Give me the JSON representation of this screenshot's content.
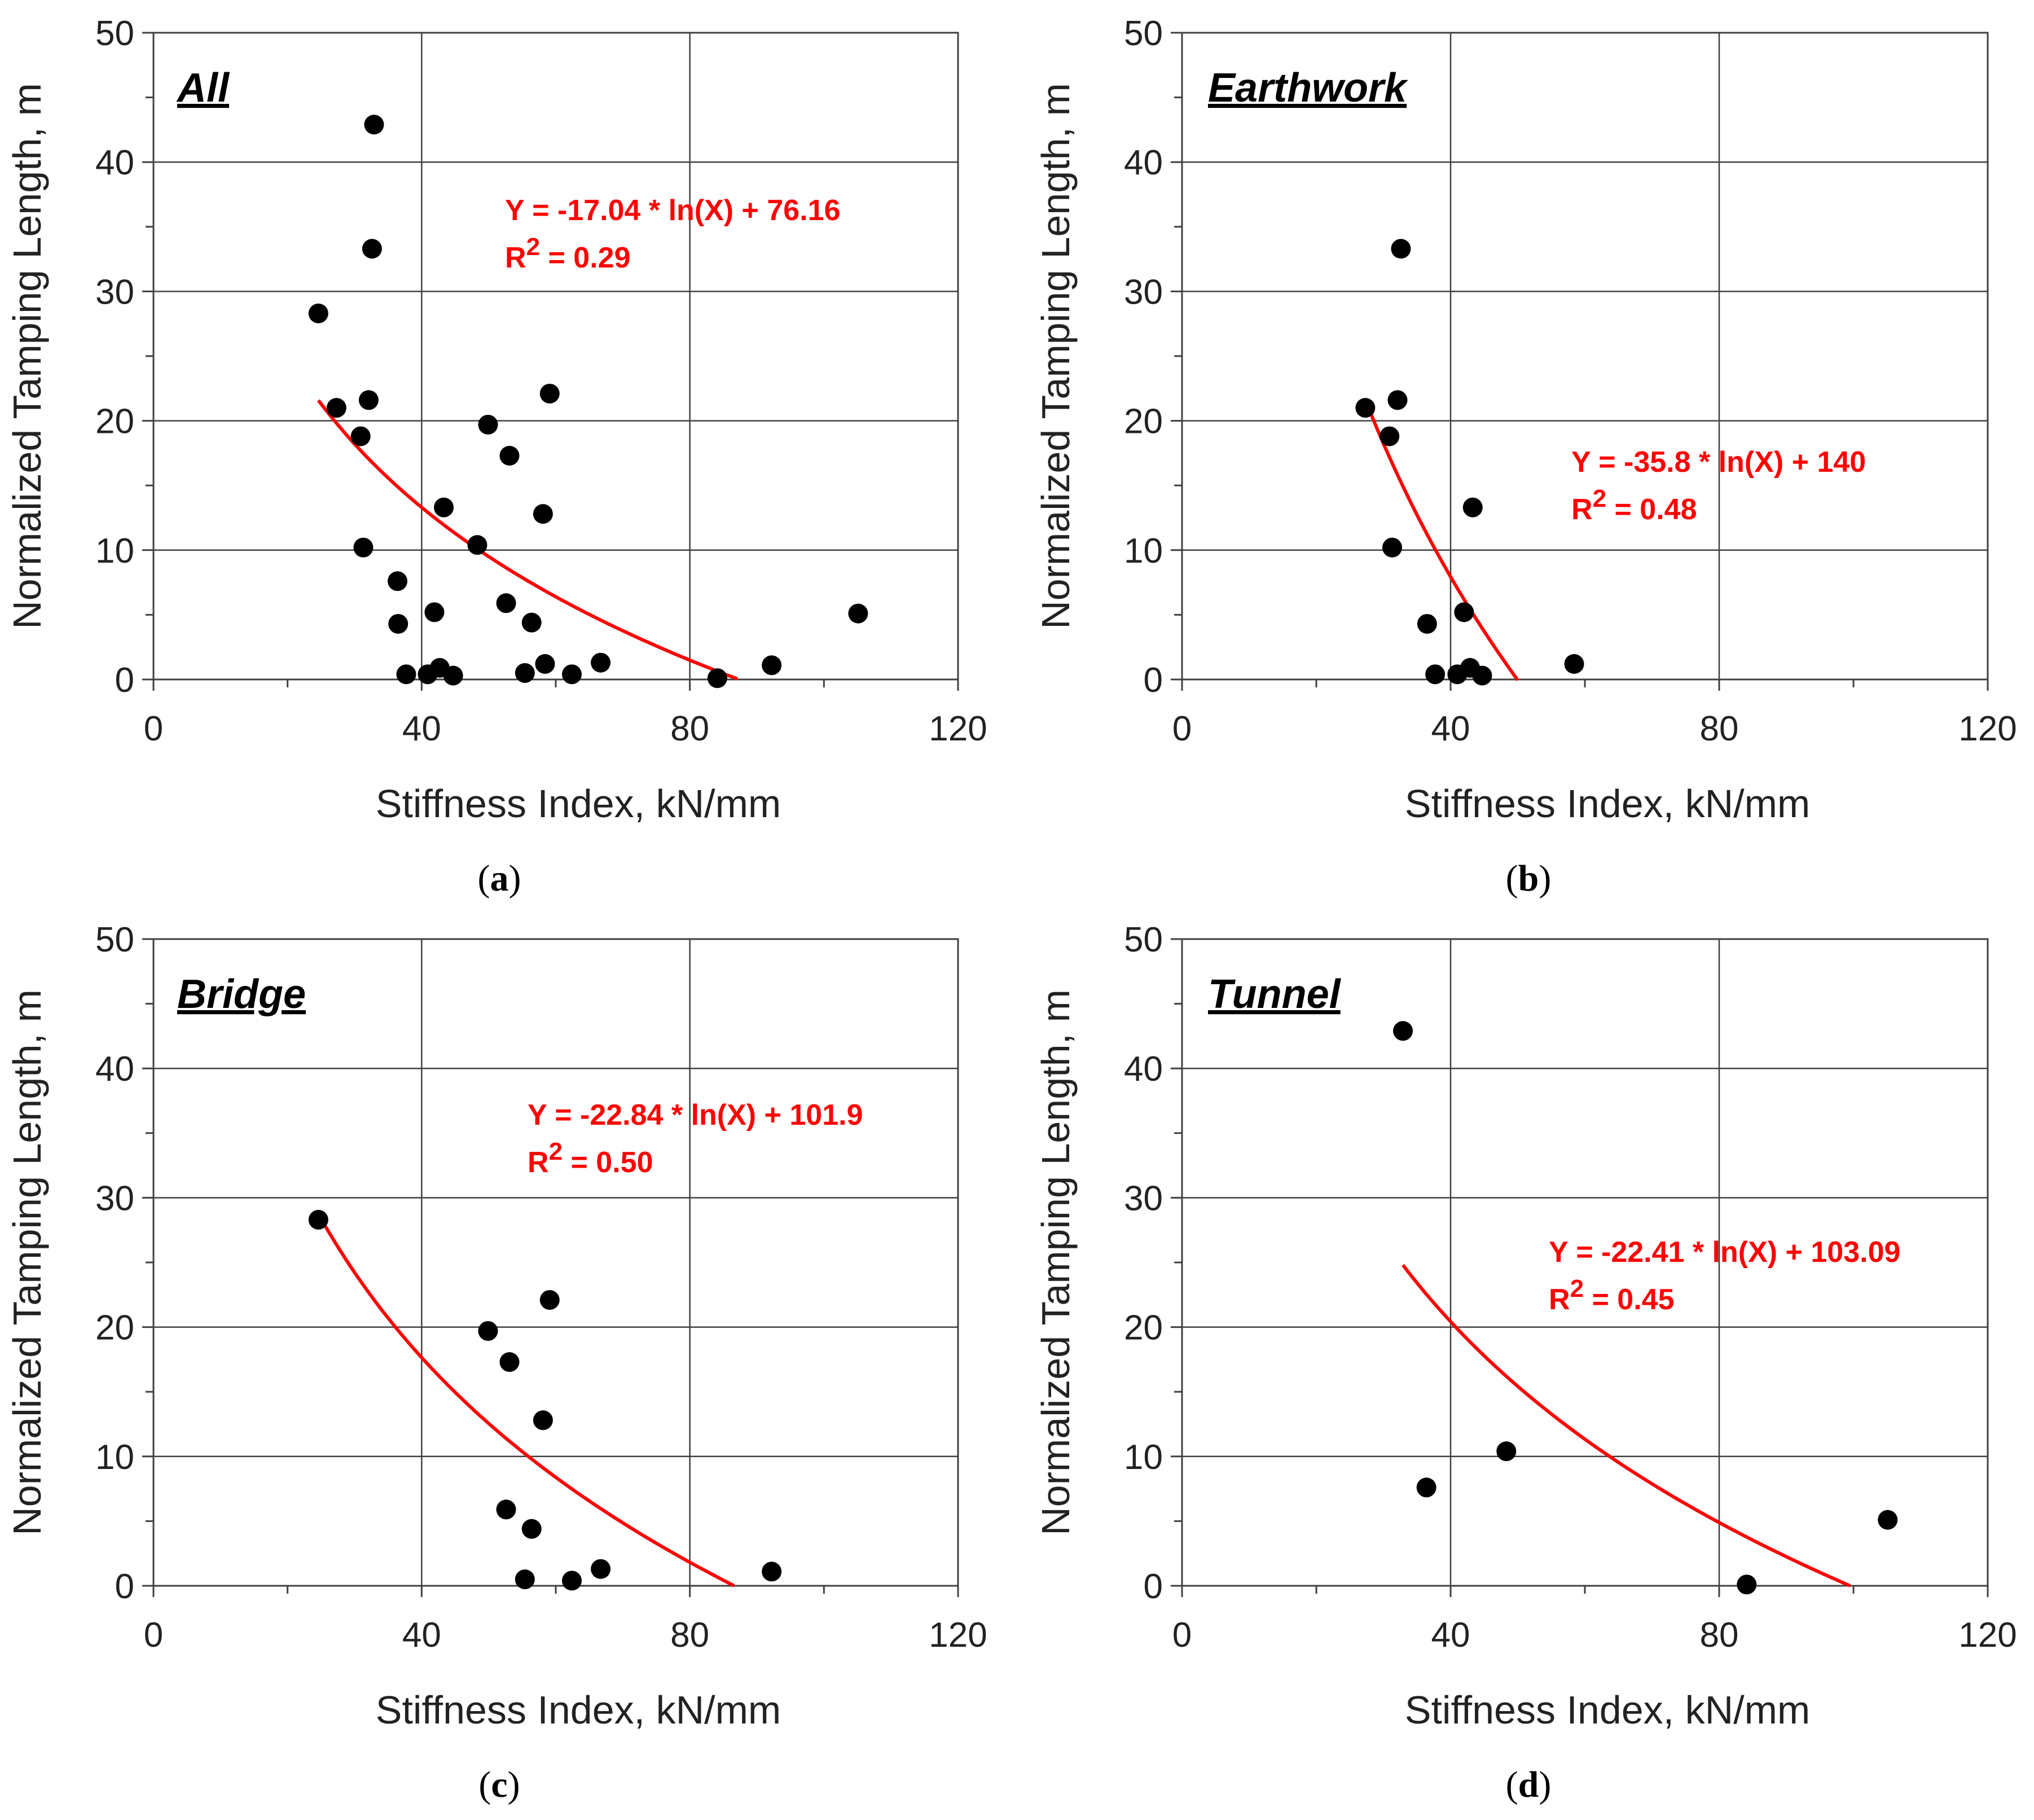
{
  "figure": {
    "colors": {
      "fit": "#ff0000",
      "marker": "#000000",
      "grid": "#404040",
      "axis": "#404040",
      "equation": "#ff0000"
    }
  },
  "chart_data": [
    {
      "type": "scatter",
      "id": "a",
      "title": "All",
      "caption_letter": "a",
      "xlabel": "Stiffness Index, kN/mm",
      "ylabel": "Normalized Tamping Length, m",
      "xlim": [
        0,
        120
      ],
      "ylim": [
        0,
        50
      ],
      "x_ticks": [
        0,
        40,
        80,
        120
      ],
      "y_ticks": [
        0,
        10,
        20,
        30,
        40,
        50
      ],
      "grid": true,
      "equation": "Y = -17.04 * ln(X) + 76.16",
      "r2_label": "R",
      "r2_sup": "2",
      "r2_value": " = 0.29",
      "fit": {
        "a": -17.04,
        "b": 76.16,
        "x_from": 24.6,
        "x_to": 87.1
      },
      "points": [
        [
          32.9,
          42.9
        ],
        [
          32.6,
          33.3
        ],
        [
          24.6,
          28.3
        ],
        [
          59.1,
          22.1
        ],
        [
          32.1,
          21.6
        ],
        [
          27.3,
          21.0
        ],
        [
          30.9,
          18.8
        ],
        [
          49.9,
          19.7
        ],
        [
          53.1,
          17.3
        ],
        [
          43.3,
          13.3
        ],
        [
          58.1,
          12.8
        ],
        [
          48.3,
          10.4
        ],
        [
          31.3,
          10.2
        ],
        [
          36.4,
          7.6
        ],
        [
          36.5,
          4.3
        ],
        [
          41.9,
          5.2
        ],
        [
          52.6,
          5.9
        ],
        [
          56.4,
          4.4
        ],
        [
          105.1,
          5.1
        ],
        [
          37.7,
          0.4
        ],
        [
          40.9,
          0.4
        ],
        [
          42.7,
          0.9
        ],
        [
          44.7,
          0.3
        ],
        [
          55.4,
          0.5
        ],
        [
          58.4,
          1.2
        ],
        [
          62.4,
          0.4
        ],
        [
          66.7,
          1.3
        ],
        [
          84.1,
          0.1
        ],
        [
          92.2,
          1.1
        ]
      ]
    },
    {
      "type": "scatter",
      "id": "b",
      "title": "Earthwork",
      "caption_letter": "b",
      "xlabel": "Stiffness Index, kN/mm",
      "ylabel": "Normalized Tamping Length, m",
      "xlim": [
        0,
        120
      ],
      "ylim": [
        0,
        50
      ],
      "x_ticks": [
        0,
        40,
        80,
        120
      ],
      "y_ticks": [
        0,
        10,
        20,
        30,
        40,
        50
      ],
      "grid": true,
      "equation": "Y = -35.8 * ln(X) + 140",
      "r2_label": "R",
      "r2_sup": "2",
      "r2_value": " = 0.48",
      "fit": {
        "a": -35.8,
        "b": 140,
        "x_from": 27.3,
        "x_to": 50.0
      },
      "points": [
        [
          32.6,
          33.3
        ],
        [
          32.1,
          21.6
        ],
        [
          27.3,
          21.0
        ],
        [
          30.9,
          18.8
        ],
        [
          43.3,
          13.3
        ],
        [
          31.3,
          10.2
        ],
        [
          42.0,
          5.2
        ],
        [
          36.5,
          4.3
        ],
        [
          37.7,
          0.4
        ],
        [
          41.0,
          0.4
        ],
        [
          42.9,
          0.9
        ],
        [
          44.7,
          0.3
        ],
        [
          58.4,
          1.2
        ]
      ]
    },
    {
      "type": "scatter",
      "id": "c",
      "title": "Bridge",
      "caption_letter": "c",
      "xlabel": "Stiffness Index, kN/mm",
      "ylabel": "Normalized Tamping Length, m",
      "xlim": [
        0,
        120
      ],
      "ylim": [
        0,
        50
      ],
      "x_ticks": [
        0,
        40,
        80,
        120
      ],
      "y_ticks": [
        0,
        10,
        20,
        30,
        40,
        50
      ],
      "grid": true,
      "equation": "Y = -22.84 * ln(X) + 101.9",
      "r2_label": "R",
      "r2_sup": "2",
      "r2_value": " = 0.50",
      "fit": {
        "a": -22.84,
        "b": 101.9,
        "x_from": 24.6,
        "x_to": 86.6
      },
      "points": [
        [
          24.6,
          28.3
        ],
        [
          59.1,
          22.1
        ],
        [
          49.9,
          19.7
        ],
        [
          53.1,
          17.3
        ],
        [
          58.1,
          12.8
        ],
        [
          52.6,
          5.9
        ],
        [
          56.4,
          4.4
        ],
        [
          55.4,
          0.5
        ],
        [
          62.4,
          0.4
        ],
        [
          66.7,
          1.3
        ],
        [
          92.2,
          1.1
        ]
      ]
    },
    {
      "type": "scatter",
      "id": "d",
      "title": "Tunnel",
      "caption_letter": "d",
      "xlabel": "Stiffness Index, kN/mm",
      "ylabel": "Normalized Tamping Length, m",
      "xlim": [
        0,
        120
      ],
      "ylim": [
        0,
        50
      ],
      "x_ticks": [
        0,
        40,
        80,
        120
      ],
      "y_ticks": [
        0,
        10,
        20,
        30,
        40,
        50
      ],
      "grid": true,
      "equation": "Y = -22.41 * ln(X) + 103.09",
      "r2_label": "R",
      "r2_sup": "2",
      "r2_value": " = 0.45",
      "fit": {
        "a": -22.41,
        "b": 103.09,
        "x_from": 32.9,
        "x_to": 99.5
      },
      "points": [
        [
          32.9,
          42.9
        ],
        [
          48.3,
          10.4
        ],
        [
          36.4,
          7.6
        ],
        [
          105.1,
          5.1
        ],
        [
          84.1,
          0.1
        ]
      ]
    }
  ]
}
